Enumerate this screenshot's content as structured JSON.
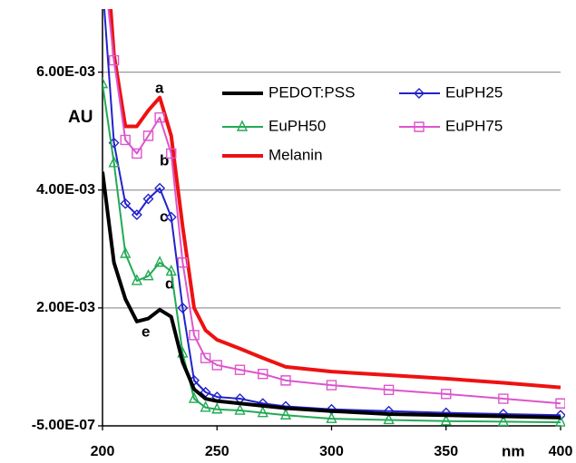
{
  "chart_data": {
    "type": "line",
    "x_label": "nm",
    "y_label": "AU",
    "x": [
      200,
      205,
      210,
      215,
      220,
      225,
      230,
      235,
      240,
      245,
      250,
      260,
      270,
      280,
      300,
      325,
      350,
      375,
      400
    ],
    "series": [
      {
        "name": "PEDOT:PSS",
        "color": "#000000",
        "marker": "none",
        "values": [
          0.00431,
          0.00277,
          0.00215,
          0.00177,
          0.00182,
          0.00197,
          0.00185,
          0.00108,
          0.00062,
          0.00046,
          0.00042,
          0.00038,
          0.00034,
          0.0003,
          0.00025,
          0.0002,
          0.00018,
          0.00016,
          0.00014
        ]
      },
      {
        "name": "EuPH25",
        "color": "#2222cc",
        "marker": "diamond",
        "values": [
          0.0075,
          0.0048,
          0.00377,
          0.00358,
          0.00385,
          0.00403,
          0.00354,
          0.002,
          0.00077,
          0.00057,
          0.00049,
          0.00046,
          0.00038,
          0.00033,
          0.00028,
          0.00025,
          0.00022,
          0.0002,
          0.00018
        ]
      },
      {
        "name": "EuPH50",
        "color": "#22aa55",
        "marker": "triangle",
        "values": [
          0.0058,
          0.00446,
          0.00292,
          0.00246,
          0.00254,
          0.00277,
          0.00262,
          0.00123,
          0.00046,
          0.00031,
          0.00028,
          0.00026,
          0.00022,
          0.00018,
          0.00012,
          0.0001,
          8e-05,
          7e-05,
          6e-05
        ]
      },
      {
        "name": "EuPH75",
        "color": "#dd55cc",
        "marker": "square",
        "values": [
          0.008,
          0.0062,
          0.00485,
          0.00462,
          0.00492,
          0.00523,
          0.00462,
          0.00277,
          0.00154,
          0.00115,
          0.00103,
          0.00095,
          0.00088,
          0.00077,
          0.00069,
          0.00061,
          0.00054,
          0.00046,
          0.00038
        ]
      },
      {
        "name": "Melanin",
        "color": "#ee1111",
        "marker": "none",
        "values": [
          0.009,
          0.0063,
          0.00508,
          0.00508,
          0.00535,
          0.00557,
          0.00492,
          0.00338,
          0.002,
          0.00162,
          0.00146,
          0.00131,
          0.00115,
          0.001,
          0.00092,
          0.00086,
          0.0008,
          0.00073,
          0.00065
        ]
      }
    ],
    "annotations": [
      "a",
      "b",
      "c",
      "d",
      "e"
    ],
    "xlim": [
      200,
      400
    ],
    "xticks": [
      200,
      250,
      300,
      350,
      400
    ],
    "ylim": [
      -5e-07,
      0.00707
    ],
    "yticks": [
      {
        "value": -5e-07,
        "label": "-5.00E-07"
      },
      {
        "value": 0.002,
        "label": "2.00E-03"
      },
      {
        "value": 0.004,
        "label": "4.00E-03"
      },
      {
        "value": 0.006,
        "label": "6.00E-03"
      }
    ],
    "grid": true
  }
}
